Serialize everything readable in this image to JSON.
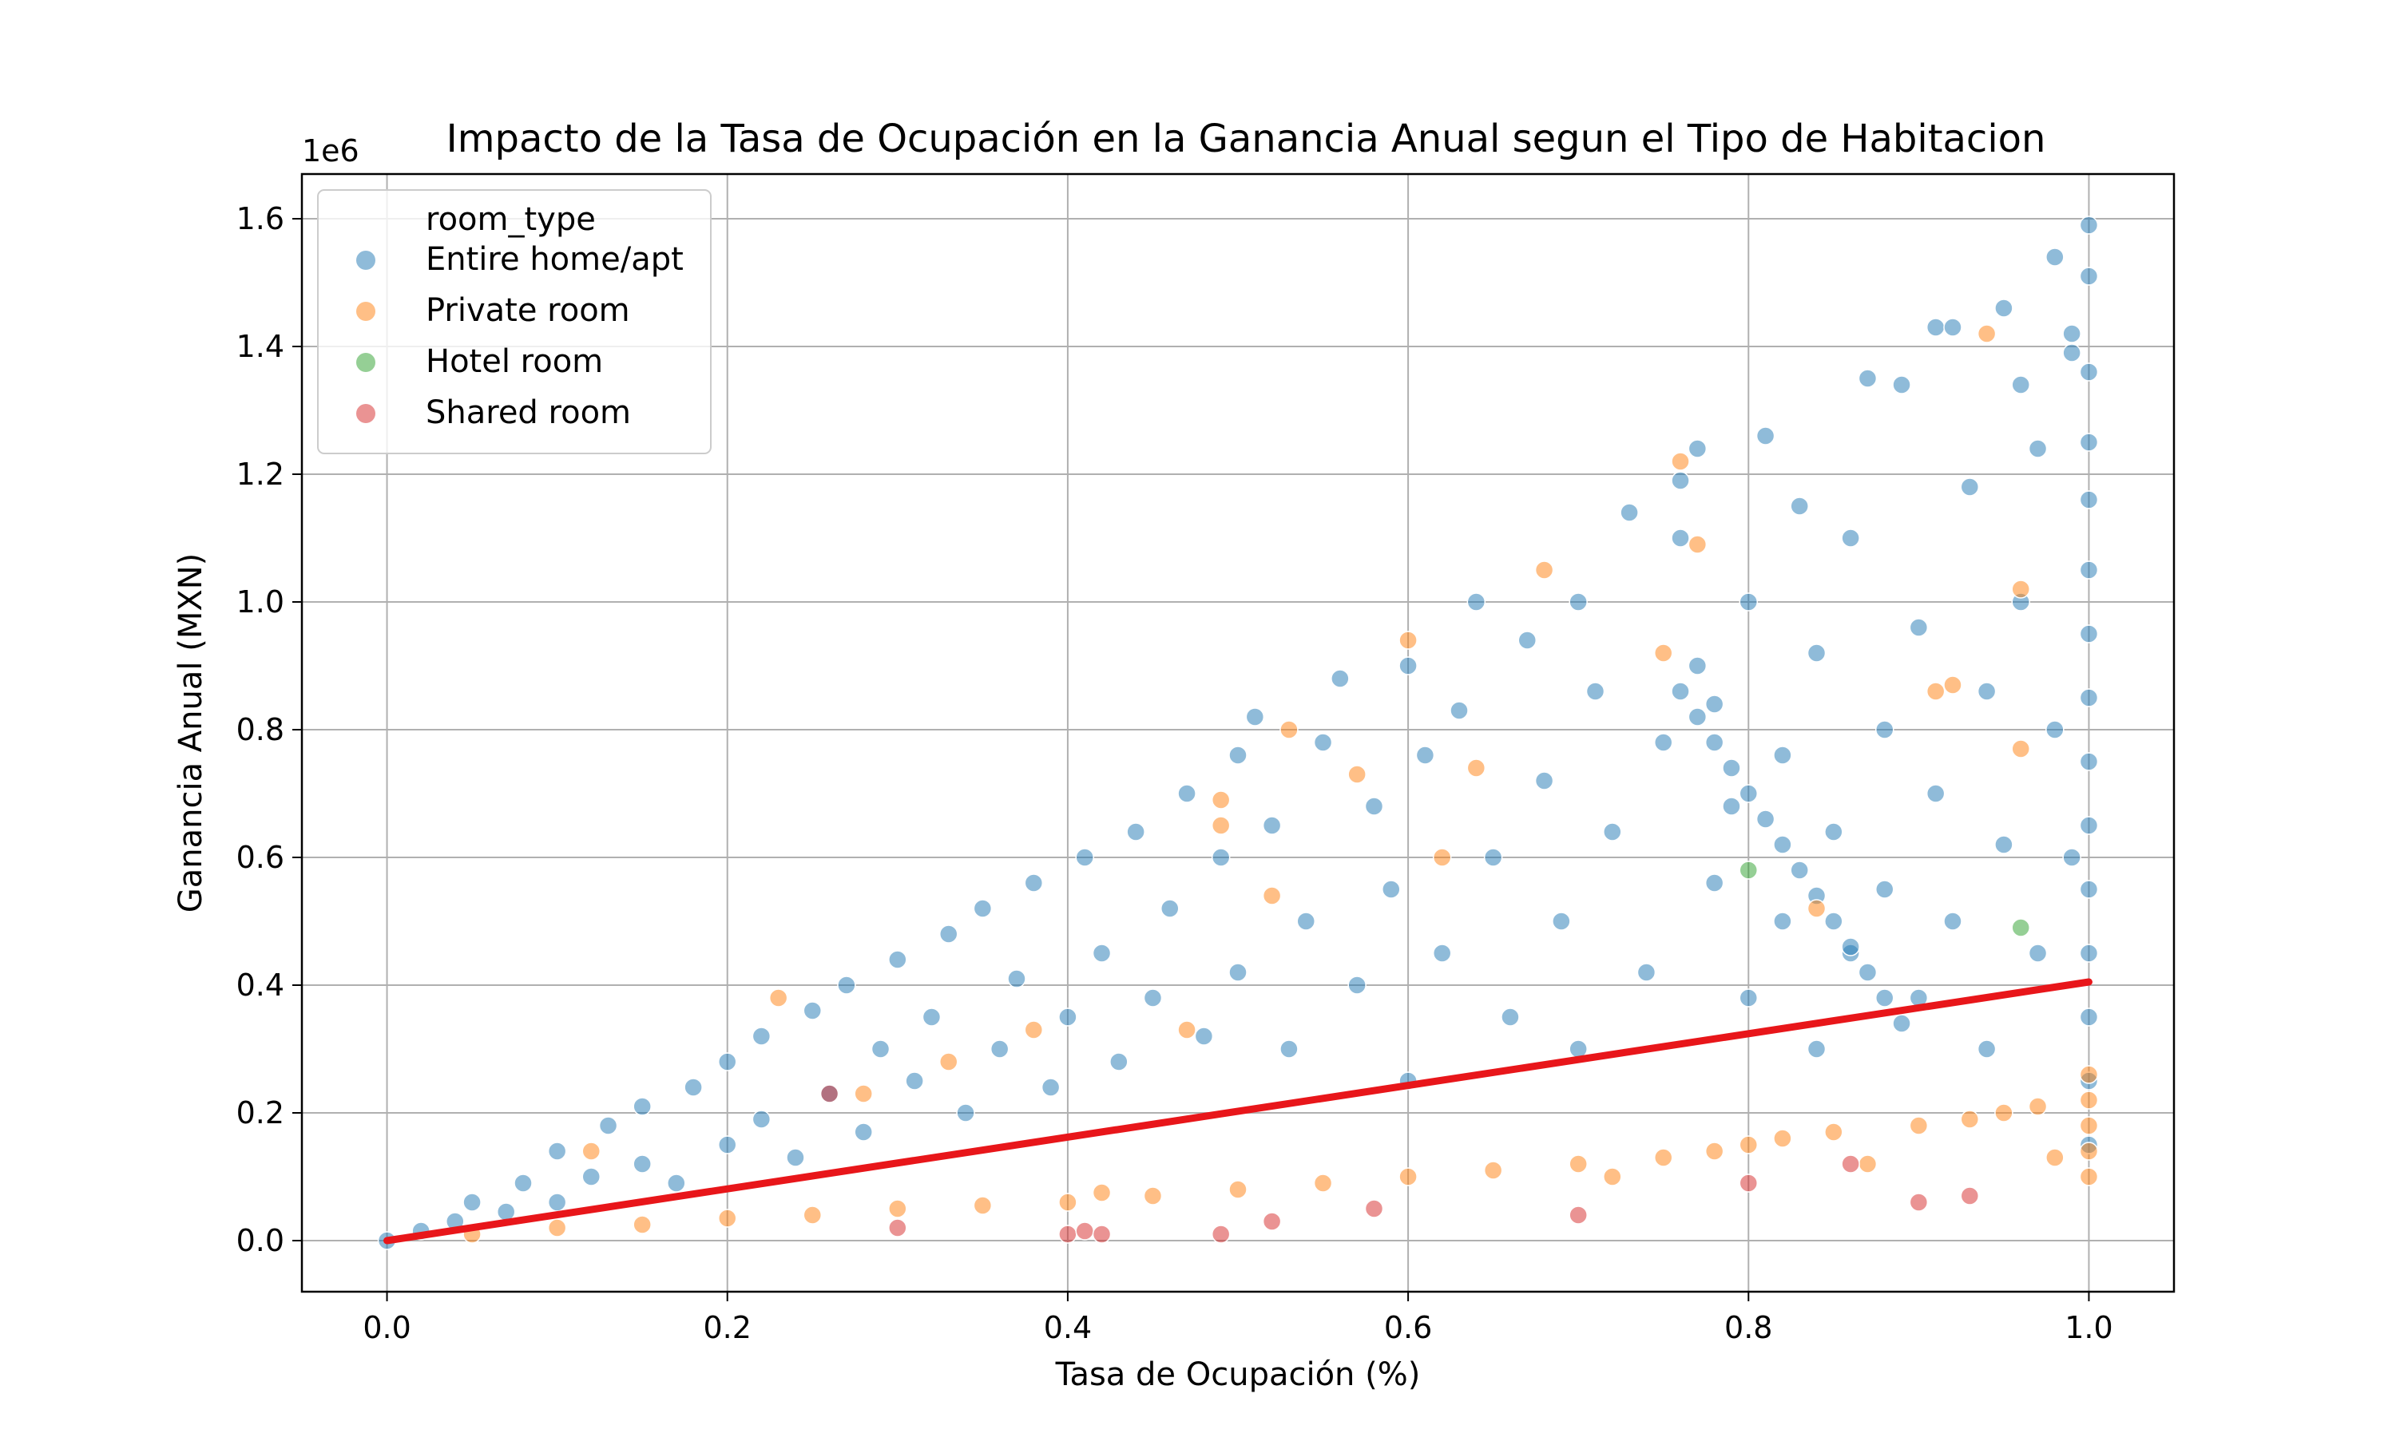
{
  "chart_data": {
    "type": "scatter",
    "title": "Impacto de la Tasa de Ocupación en la Ganancia Anual segun el Tipo de Habitacion",
    "xlabel": "Tasa de Ocupación (%)",
    "ylabel": "Ganancia Anual (MXN)",
    "y_offset_label": "1e6",
    "xlim": [
      -0.05,
      1.05
    ],
    "ylim": [
      -80000,
      1670000
    ],
    "x_ticks": [
      0.0,
      0.2,
      0.4,
      0.6,
      0.8,
      1.0
    ],
    "x_tick_labels": [
      "0.0",
      "0.2",
      "0.4",
      "0.6",
      "0.8",
      "1.0"
    ],
    "y_ticks": [
      0,
      200000,
      400000,
      600000,
      800000,
      1000000,
      1200000,
      1400000,
      1600000
    ],
    "y_tick_labels": [
      "0.0",
      "0.2",
      "0.4",
      "0.6",
      "0.8",
      "1.0",
      "1.2",
      "1.4",
      "1.6"
    ],
    "grid": true,
    "legend_title": "room_type",
    "legend_position": "top-left",
    "series": [
      {
        "name": "Entire home/apt",
        "color": "#1f77b4",
        "points": [
          [
            0.0,
            0
          ],
          [
            0.02,
            15000
          ],
          [
            0.04,
            30000
          ],
          [
            0.05,
            60000
          ],
          [
            0.07,
            45000
          ],
          [
            0.08,
            90000
          ],
          [
            0.1,
            60000
          ],
          [
            0.1,
            140000
          ],
          [
            0.12,
            100000
          ],
          [
            0.13,
            180000
          ],
          [
            0.15,
            120000
          ],
          [
            0.15,
            210000
          ],
          [
            0.17,
            90000
          ],
          [
            0.18,
            240000
          ],
          [
            0.2,
            150000
          ],
          [
            0.2,
            280000
          ],
          [
            0.22,
            190000
          ],
          [
            0.22,
            320000
          ],
          [
            0.24,
            130000
          ],
          [
            0.25,
            360000
          ],
          [
            0.26,
            230000
          ],
          [
            0.27,
            400000
          ],
          [
            0.28,
            170000
          ],
          [
            0.29,
            300000
          ],
          [
            0.3,
            440000
          ],
          [
            0.31,
            250000
          ],
          [
            0.32,
            350000
          ],
          [
            0.33,
            480000
          ],
          [
            0.34,
            200000
          ],
          [
            0.35,
            520000
          ],
          [
            0.36,
            300000
          ],
          [
            0.37,
            410000
          ],
          [
            0.38,
            560000
          ],
          [
            0.39,
            240000
          ],
          [
            0.4,
            350000
          ],
          [
            0.41,
            600000
          ],
          [
            0.42,
            450000
          ],
          [
            0.43,
            280000
          ],
          [
            0.44,
            640000
          ],
          [
            0.45,
            380000
          ],
          [
            0.46,
            520000
          ],
          [
            0.47,
            700000
          ],
          [
            0.48,
            320000
          ],
          [
            0.49,
            600000
          ],
          [
            0.5,
            420000
          ],
          [
            0.5,
            760000
          ],
          [
            0.51,
            820000
          ],
          [
            0.52,
            650000
          ],
          [
            0.53,
            300000
          ],
          [
            0.54,
            500000
          ],
          [
            0.55,
            780000
          ],
          [
            0.56,
            880000
          ],
          [
            0.57,
            400000
          ],
          [
            0.58,
            680000
          ],
          [
            0.59,
            550000
          ],
          [
            0.6,
            900000
          ],
          [
            0.6,
            250000
          ],
          [
            0.61,
            760000
          ],
          [
            0.62,
            450000
          ],
          [
            0.63,
            830000
          ],
          [
            0.64,
            1000000
          ],
          [
            0.65,
            600000
          ],
          [
            0.66,
            350000
          ],
          [
            0.67,
            940000
          ],
          [
            0.68,
            720000
          ],
          [
            0.69,
            500000
          ],
          [
            0.7,
            1000000
          ],
          [
            0.7,
            300000
          ],
          [
            0.71,
            860000
          ],
          [
            0.72,
            640000
          ],
          [
            0.73,
            1140000
          ],
          [
            0.74,
            420000
          ],
          [
            0.75,
            780000
          ],
          [
            0.76,
            1100000
          ],
          [
            0.76,
            1190000
          ],
          [
            0.77,
            900000
          ],
          [
            0.77,
            1240000
          ],
          [
            0.78,
            560000
          ],
          [
            0.78,
            840000
          ],
          [
            0.79,
            680000
          ],
          [
            0.8,
            1000000
          ],
          [
            0.8,
            380000
          ],
          [
            0.81,
            1260000
          ],
          [
            0.82,
            760000
          ],
          [
            0.82,
            500000
          ],
          [
            0.83,
            1150000
          ],
          [
            0.84,
            920000
          ],
          [
            0.84,
            300000
          ],
          [
            0.85,
            640000
          ],
          [
            0.86,
            1100000
          ],
          [
            0.86,
            450000
          ],
          [
            0.87,
            1350000
          ],
          [
            0.88,
            800000
          ],
          [
            0.88,
            550000
          ],
          [
            0.89,
            1340000
          ],
          [
            0.9,
            960000
          ],
          [
            0.9,
            380000
          ],
          [
            0.91,
            1430000
          ],
          [
            0.91,
            700000
          ],
          [
            0.92,
            1430000
          ],
          [
            0.92,
            500000
          ],
          [
            0.93,
            1180000
          ],
          [
            0.94,
            860000
          ],
          [
            0.94,
            300000
          ],
          [
            0.95,
            1460000
          ],
          [
            0.95,
            620000
          ],
          [
            0.96,
            1340000
          ],
          [
            0.96,
            1000000
          ],
          [
            0.97,
            1240000
          ],
          [
            0.97,
            450000
          ],
          [
            0.98,
            1540000
          ],
          [
            0.98,
            800000
          ],
          [
            0.99,
            1420000
          ],
          [
            0.99,
            1390000
          ],
          [
            0.99,
            600000
          ],
          [
            1.0,
            1590000
          ],
          [
            1.0,
            1510000
          ],
          [
            1.0,
            1360000
          ],
          [
            1.0,
            1250000
          ],
          [
            1.0,
            1160000
          ],
          [
            1.0,
            1050000
          ],
          [
            1.0,
            950000
          ],
          [
            1.0,
            850000
          ],
          [
            1.0,
            750000
          ],
          [
            1.0,
            650000
          ],
          [
            1.0,
            550000
          ],
          [
            1.0,
            450000
          ],
          [
            1.0,
            350000
          ],
          [
            1.0,
            250000
          ],
          [
            1.0,
            150000
          ],
          [
            0.76,
            860000
          ],
          [
            0.77,
            820000
          ],
          [
            0.78,
            780000
          ],
          [
            0.79,
            740000
          ],
          [
            0.8,
            700000
          ],
          [
            0.81,
            660000
          ],
          [
            0.82,
            620000
          ],
          [
            0.83,
            580000
          ],
          [
            0.84,
            540000
          ],
          [
            0.85,
            500000
          ],
          [
            0.86,
            460000
          ],
          [
            0.87,
            420000
          ],
          [
            0.88,
            380000
          ],
          [
            0.89,
            340000
          ]
        ]
      },
      {
        "name": "Private room",
        "color": "#ff7f0e",
        "points": [
          [
            0.05,
            10000
          ],
          [
            0.1,
            20000
          ],
          [
            0.12,
            140000
          ],
          [
            0.15,
            25000
          ],
          [
            0.2,
            35000
          ],
          [
            0.23,
            380000
          ],
          [
            0.25,
            40000
          ],
          [
            0.28,
            230000
          ],
          [
            0.3,
            50000
          ],
          [
            0.33,
            280000
          ],
          [
            0.35,
            55000
          ],
          [
            0.38,
            330000
          ],
          [
            0.4,
            60000
          ],
          [
            0.42,
            75000
          ],
          [
            0.45,
            70000
          ],
          [
            0.47,
            330000
          ],
          [
            0.49,
            690000
          ],
          [
            0.49,
            650000
          ],
          [
            0.5,
            80000
          ],
          [
            0.52,
            540000
          ],
          [
            0.53,
            800000
          ],
          [
            0.55,
            90000
          ],
          [
            0.57,
            730000
          ],
          [
            0.6,
            100000
          ],
          [
            0.6,
            940000
          ],
          [
            0.62,
            600000
          ],
          [
            0.64,
            740000
          ],
          [
            0.65,
            110000
          ],
          [
            0.68,
            1050000
          ],
          [
            0.7,
            120000
          ],
          [
            0.72,
            100000
          ],
          [
            0.75,
            130000
          ],
          [
            0.75,
            920000
          ],
          [
            0.76,
            1220000
          ],
          [
            0.77,
            1090000
          ],
          [
            0.78,
            140000
          ],
          [
            0.8,
            150000
          ],
          [
            0.82,
            160000
          ],
          [
            0.84,
            520000
          ],
          [
            0.85,
            170000
          ],
          [
            0.87,
            120000
          ],
          [
            0.9,
            180000
          ],
          [
            0.91,
            860000
          ],
          [
            0.92,
            870000
          ],
          [
            0.93,
            190000
          ],
          [
            0.94,
            1420000
          ],
          [
            0.95,
            200000
          ],
          [
            0.96,
            1020000
          ],
          [
            0.96,
            770000
          ],
          [
            0.97,
            210000
          ],
          [
            0.98,
            130000
          ],
          [
            1.0,
            220000
          ],
          [
            1.0,
            180000
          ],
          [
            1.0,
            140000
          ],
          [
            1.0,
            100000
          ],
          [
            1.0,
            260000
          ]
        ]
      },
      {
        "name": "Hotel room",
        "color": "#2ca02c",
        "points": [
          [
            0.96,
            490000
          ],
          [
            0.8,
            580000
          ]
        ]
      },
      {
        "name": "Shared room",
        "color": "#d62728",
        "points": [
          [
            0.26,
            230000
          ],
          [
            0.3,
            20000
          ],
          [
            0.4,
            10000
          ],
          [
            0.41,
            15000
          ],
          [
            0.42,
            10000
          ],
          [
            0.49,
            10000
          ],
          [
            0.52,
            30000
          ],
          [
            0.58,
            50000
          ],
          [
            0.7,
            40000
          ],
          [
            0.8,
            90000
          ],
          [
            0.86,
            120000
          ],
          [
            0.9,
            60000
          ],
          [
            0.93,
            70000
          ]
        ]
      }
    ],
    "fit_line": {
      "color": "#e8161a",
      "x": [
        0.0,
        1.0
      ],
      "y": [
        0,
        405000
      ]
    }
  }
}
